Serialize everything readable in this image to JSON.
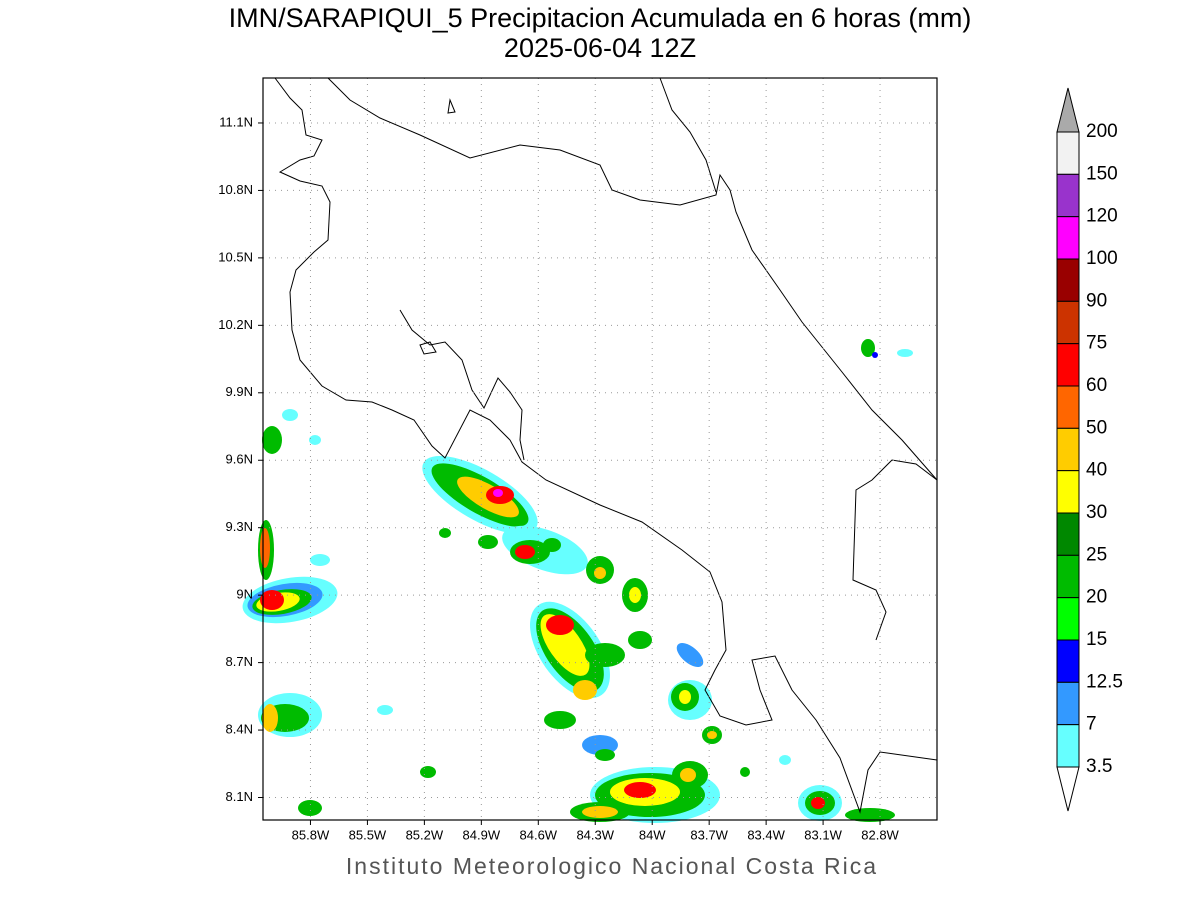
{
  "title": "IMN/SARAPIQUI_5 Precipitacion Acumulada en 6 horas (mm)",
  "subtitle": "2025-06-04 12Z",
  "footer": "Instituto Meteorologico Nacional Costa Rica",
  "map": {
    "xlim": [
      -86.05,
      -82.5
    ],
    "ylim": [
      8.0,
      11.3
    ],
    "grid": true,
    "xticks": [
      {
        "value": -85.8,
        "label": "85.8W"
      },
      {
        "value": -85.5,
        "label": "85.5W"
      },
      {
        "value": -85.2,
        "label": "85.2W"
      },
      {
        "value": -84.9,
        "label": "84.9W"
      },
      {
        "value": -84.6,
        "label": "84.6W"
      },
      {
        "value": -84.3,
        "label": "84.3W"
      },
      {
        "value": -84.0,
        "label": "84W"
      },
      {
        "value": -83.7,
        "label": "83.7W"
      },
      {
        "value": -83.4,
        "label": "83.4W"
      },
      {
        "value": -83.1,
        "label": "83.1W"
      },
      {
        "value": -82.8,
        "label": "82.8W"
      }
    ],
    "yticks": [
      {
        "value": 11.1,
        "label": "11.1N"
      },
      {
        "value": 10.8,
        "label": "10.8N"
      },
      {
        "value": 10.5,
        "label": "10.5N"
      },
      {
        "value": 10.2,
        "label": "10.2N"
      },
      {
        "value": 9.9,
        "label": "9.9N"
      },
      {
        "value": 9.6,
        "label": "9.6N"
      },
      {
        "value": 9.3,
        "label": "9.3N"
      },
      {
        "value": 9.0,
        "label": "9N"
      },
      {
        "value": 8.7,
        "label": "8.7N"
      },
      {
        "value": 8.4,
        "label": "8.4N"
      },
      {
        "value": 8.1,
        "label": "8.1N"
      }
    ]
  },
  "colorbar": {
    "levels": [
      200,
      150,
      120,
      100,
      90,
      75,
      60,
      50,
      40,
      30,
      25,
      20,
      15,
      12.5,
      7,
      3.5
    ],
    "colors": [
      "#f2f2f2",
      "#9933cc",
      "#ff00ff",
      "#990000",
      "#cc3300",
      "#ff0000",
      "#ff6600",
      "#ffcc00",
      "#ffff00",
      "#008800",
      "#00bb00",
      "#00ff00",
      "#0000ff",
      "#3399ff",
      "#66ffff"
    ],
    "over_color": "#aaaaaa",
    "under_color": "#ffffff"
  }
}
